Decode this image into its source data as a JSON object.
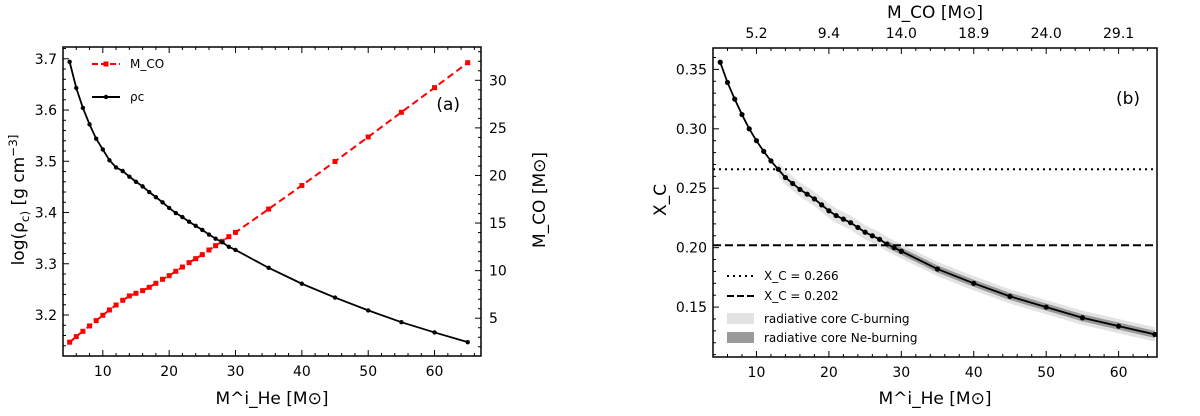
{
  "chart_data": [
    {
      "type": "line",
      "panel_label": "(a)",
      "xlabel": "M^i_He [M⊙]",
      "ylabel": "log(ρc) [g cm^-3]",
      "y2label": "M_CO [M⊙]",
      "xlim": [
        4,
        67
      ],
      "ylim": [
        3.12,
        3.723
      ],
      "y2lim": [
        1.03,
        33.5
      ],
      "xticks": [
        10,
        20,
        30,
        40,
        50,
        60
      ],
      "yticks": [
        3.2,
        3.3,
        3.4,
        3.5,
        3.6,
        3.7
      ],
      "y2ticks": [
        5,
        10,
        15,
        20,
        25,
        30
      ],
      "legend_position": "top-left",
      "x": [
        5,
        6,
        7,
        8,
        9,
        10,
        11,
        12,
        13,
        14,
        15,
        16,
        17,
        18,
        19,
        20,
        21,
        22,
        23,
        24,
        25,
        26,
        27,
        28,
        29,
        30,
        35,
        40,
        45,
        50,
        55,
        60,
        65
      ],
      "series": [
        {
          "name": "M_CO",
          "axis": "right",
          "color": "#ff0000",
          "style": "dashed",
          "marker": "square",
          "values": [
            2.48,
            3.07,
            3.63,
            4.19,
            4.75,
            5.31,
            5.87,
            6.39,
            6.88,
            7.34,
            7.62,
            7.9,
            8.25,
            8.67,
            9.09,
            9.47,
            9.93,
            10.38,
            10.84,
            11.26,
            11.68,
            12.17,
            12.62,
            13.08,
            13.57,
            14.02,
            16.47,
            18.95,
            21.47,
            24.05,
            26.64,
            29.23,
            31.85
          ]
        },
        {
          "name": "ρc",
          "axis": "left",
          "color": "#000000",
          "style": "solid",
          "marker": "circle",
          "values": [
            3.694,
            3.643,
            3.604,
            3.572,
            3.544,
            3.523,
            3.502,
            3.488,
            3.481,
            3.47,
            3.46,
            3.451,
            3.44,
            3.43,
            3.42,
            3.409,
            3.399,
            3.391,
            3.382,
            3.374,
            3.366,
            3.357,
            3.349,
            3.342,
            3.333,
            3.327,
            3.292,
            3.261,
            3.234,
            3.209,
            3.186,
            3.166,
            3.147
          ]
        }
      ]
    },
    {
      "type": "line",
      "panel_label": "(b)",
      "xlabel": "M^i_He [M⊙]",
      "ylabel": "X_C",
      "top_xlabel": "M_CO [M⊙]",
      "xlim": [
        4,
        65.3
      ],
      "ylim": [
        0.108,
        0.368
      ],
      "xticks": [
        10,
        20,
        30,
        40,
        50,
        60
      ],
      "top_xticklabels": [
        "5.2",
        "9.4",
        "14.0",
        "18.9",
        "24.0",
        "29.1"
      ],
      "yticks": [
        0.15,
        0.2,
        0.25,
        0.3,
        0.35
      ],
      "legend_position": "bottom-left",
      "x": [
        5,
        6,
        7,
        8,
        9,
        10,
        11,
        12,
        13,
        14,
        15,
        16,
        17,
        18,
        19,
        20,
        21,
        22,
        23,
        24,
        25,
        26,
        27,
        28,
        29,
        30,
        35,
        40,
        45,
        50,
        55,
        60,
        65
      ],
      "values": [
        0.356,
        0.339,
        0.325,
        0.312,
        0.3,
        0.29,
        0.281,
        0.273,
        0.266,
        0.259,
        0.254,
        0.249,
        0.245,
        0.241,
        0.236,
        0.231,
        0.227,
        0.224,
        0.221,
        0.217,
        0.213,
        0.21,
        0.207,
        0.203,
        0.2,
        0.197,
        0.182,
        0.17,
        0.159,
        0.15,
        0.141,
        0.134,
        0.127
      ],
      "hlines": [
        {
          "y": 0.266,
          "style": "dotted",
          "label": "X_C = 0.266"
        },
        {
          "y": 0.202,
          "style": "dashed",
          "label": "X_C = 0.202"
        }
      ],
      "bands": [
        {
          "label": "radiative core C-burning",
          "color": "#e3e3e3",
          "x_from": 13,
          "halfwidth": 0.006
        },
        {
          "label": "radiative core Ne-burning",
          "color": "#9a9a9a",
          "x_from": 28,
          "halfwidth": 0.003
        }
      ]
    }
  ]
}
